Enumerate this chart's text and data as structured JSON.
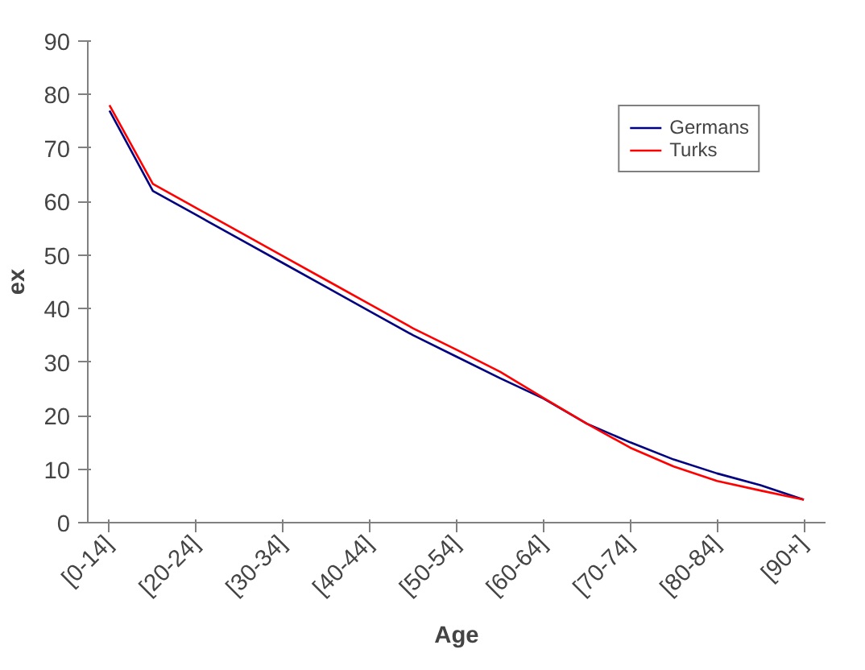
{
  "chart_data": {
    "type": "line",
    "xlabel": "Age",
    "ylabel": "ex",
    "categories": [
      "[0-14]",
      null,
      "[20-24]",
      null,
      "[30-34]",
      null,
      "[40-44]",
      null,
      "[50-54]",
      null,
      "[60-64]",
      null,
      "[70-74]",
      null,
      "[80-84]",
      null,
      "[90+]"
    ],
    "series": [
      {
        "name": "Germans",
        "color": "#000080",
        "values": [
          77,
          62,
          57.5,
          53,
          48.5,
          44,
          39.5,
          35,
          31,
          27,
          23.2,
          18.5,
          15,
          11.8,
          9.2,
          7,
          4.3
        ]
      },
      {
        "name": "Turks",
        "color": "#ff0000",
        "values": [
          78,
          63.3,
          58.8,
          54.3,
          49.8,
          45.3,
          40.8,
          36.3,
          32.3,
          28.2,
          23.3,
          18.5,
          14,
          10.5,
          7.8,
          6,
          4.3
        ]
      }
    ],
    "ylim": [
      0,
      90
    ],
    "yticks": [
      0,
      10,
      20,
      30,
      40,
      50,
      60,
      70,
      80,
      90
    ],
    "grid": false,
    "legend": "top right",
    "marker": "none",
    "line_style": "solid"
  }
}
